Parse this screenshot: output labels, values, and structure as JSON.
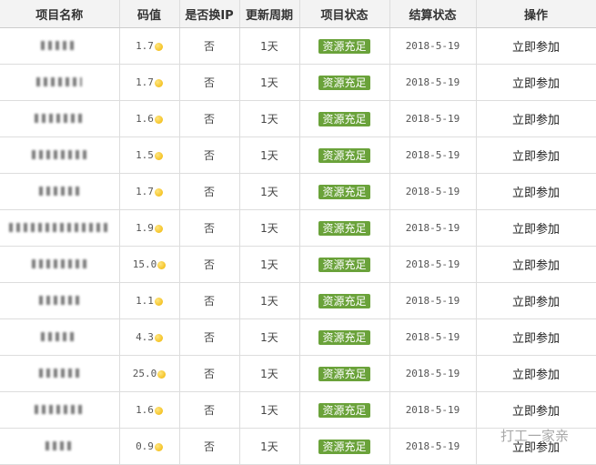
{
  "headers": [
    "项目名称",
    "码值",
    "是否换IP",
    "更新周期",
    "项目状态",
    "结算状态",
    "操作"
  ],
  "rows": [
    {
      "value": "1.7",
      "ip": "否",
      "cycle": "1天",
      "status": "资源充足",
      "settle": "2018-5-19",
      "action": "立即参加"
    },
    {
      "value": "1.7",
      "ip": "否",
      "cycle": "1天",
      "status": "资源充足",
      "settle": "2018-5-19",
      "action": "立即参加"
    },
    {
      "value": "1.6",
      "ip": "否",
      "cycle": "1天",
      "status": "资源充足",
      "settle": "2018-5-19",
      "action": "立即参加"
    },
    {
      "value": "1.5",
      "ip": "否",
      "cycle": "1天",
      "status": "资源充足",
      "settle": "2018-5-19",
      "action": "立即参加"
    },
    {
      "value": "1.7",
      "ip": "否",
      "cycle": "1天",
      "status": "资源充足",
      "settle": "2018-5-19",
      "action": "立即参加"
    },
    {
      "value": "1.9",
      "ip": "否",
      "cycle": "1天",
      "status": "资源充足",
      "settle": "2018-5-19",
      "action": "立即参加"
    },
    {
      "value": "15.0",
      "ip": "否",
      "cycle": "1天",
      "status": "资源充足",
      "settle": "2018-5-19",
      "action": "立即参加"
    },
    {
      "value": "1.1",
      "ip": "否",
      "cycle": "1天",
      "status": "资源充足",
      "settle": "2018-5-19",
      "action": "立即参加"
    },
    {
      "value": "4.3",
      "ip": "否",
      "cycle": "1天",
      "status": "资源充足",
      "settle": "2018-5-19",
      "action": "立即参加"
    },
    {
      "value": "25.0",
      "ip": "否",
      "cycle": "1天",
      "status": "资源充足",
      "settle": "2018-5-19",
      "action": "立即参加"
    },
    {
      "value": "1.6",
      "ip": "否",
      "cycle": "1天",
      "status": "资源充足",
      "settle": "2018-5-19",
      "action": "立即参加"
    },
    {
      "value": "0.9",
      "ip": "否",
      "cycle": "1天",
      "status": "资源充足",
      "settle": "2018-5-19",
      "action": "立即参加"
    }
  ],
  "watermark": "打工一家亲",
  "colors": {
    "badge": "#6aa23a",
    "coin": "#f0b400"
  }
}
